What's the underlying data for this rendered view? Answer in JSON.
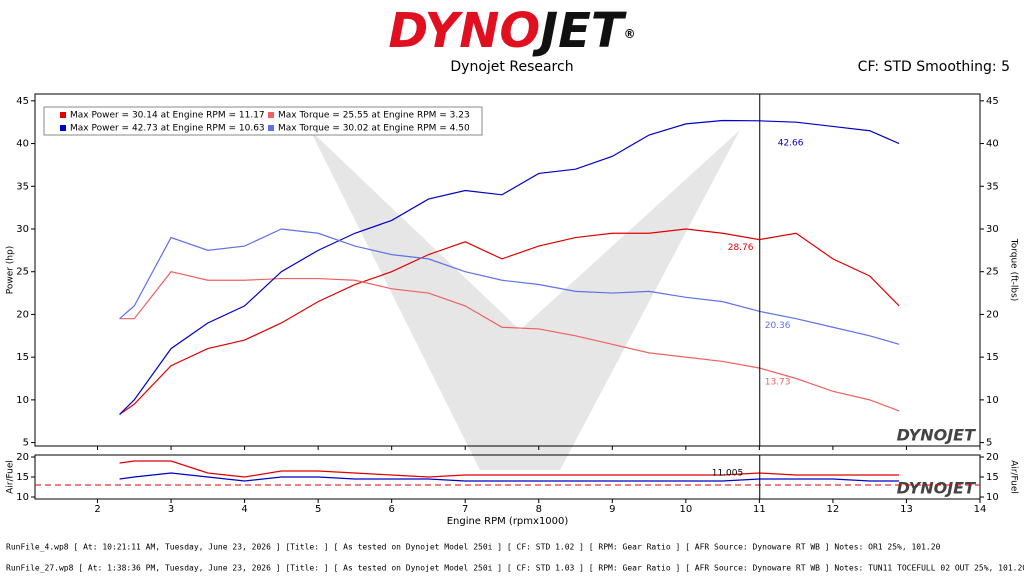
{
  "brand": {
    "left": "DYNO",
    "right": "JET",
    "reg": "®"
  },
  "footer": [
    "RunFile_4.wp8 [ At: 10:21:11 AM, Tuesday, June 23, 2026 ] [Title: ]  [ As tested on Dynojet Model 250i ] [ CF: STD 1.02 ] [ RPM: Gear Ratio ] [ AFR Source: Dynoware RT WB ] Notes: OR1 25%, 101.20",
    "RunFile_27.wp8 [ At: 1:38:36 PM, Tuesday, June 23, 2026 ] [Title: ]  [ As tested on Dynojet Model 250i ] [ CF: STD 1.03 ] [ RPM: Gear Ratio ] [ AFR Source: Dynoware RT WB ] Notes: TUN11 TOCEFULL 02 OUT 25%, 101.20"
  ],
  "chart_data": [
    {
      "type": "line",
      "title": "Dynojet Research",
      "subtitle": "CF: STD Smoothing: 5",
      "ylabel": "Power (hp)",
      "y2label": "Torque (ft-lbs)",
      "watermark": "DYNOJET",
      "x": [
        2.3,
        2.5,
        3,
        3.5,
        4,
        4.5,
        5,
        5.5,
        6,
        6.5,
        7,
        7.5,
        8,
        8.5,
        9,
        9.5,
        10,
        10.5,
        11,
        11.5,
        12,
        12.5,
        12.9
      ],
      "xlim": [
        1.15,
        14
      ],
      "xticks": [
        2,
        3,
        4,
        5,
        6,
        7,
        8,
        9,
        10,
        11,
        12,
        13,
        14
      ],
      "ylim": [
        4.6,
        45.8
      ],
      "yticks": [
        5,
        10,
        15,
        20,
        25,
        30,
        35,
        40,
        45
      ],
      "y2lim": [
        4.6,
        45.8
      ],
      "y2ticks": [
        5,
        10,
        15,
        20,
        25,
        30,
        35,
        40,
        45
      ],
      "grid": false,
      "cursor_x": 11.005,
      "series": [
        {
          "name": "Max Power = 30.14 at Engine RPM = 11.17",
          "color": "#e00000",
          "values": [
            8.3,
            9.5,
            14,
            16,
            17,
            19,
            21.5,
            23.5,
            25,
            27,
            28.5,
            26.5,
            28,
            29,
            29.5,
            29.5,
            30,
            29.5,
            28.76,
            29.5,
            26.5,
            24.5,
            21
          ]
        },
        {
          "name": "Max Torque = 25.55 at Engine RPM = 3.23",
          "color": "#f06060",
          "axis": "y2",
          "values": [
            19.5,
            19.5,
            25,
            24,
            24,
            24.2,
            24.2,
            24,
            23,
            22.5,
            21,
            18.5,
            18.3,
            17.5,
            16.5,
            15.5,
            15,
            14.5,
            13.73,
            12.5,
            11,
            10,
            8.7
          ]
        },
        {
          "name": "Max Power = 42.73 at Engine RPM = 10.63",
          "color": "#0000c8",
          "values": [
            8.3,
            10,
            16,
            19,
            21,
            25,
            27.5,
            29.5,
            31,
            33.5,
            34.5,
            34,
            36.5,
            37,
            38.5,
            41,
            42.3,
            42.7,
            42.66,
            42.5,
            42,
            41.5,
            40
          ]
        },
        {
          "name": "Max Torque = 30.02 at Engine RPM = 4.50",
          "color": "#6070e8",
          "axis": "y2",
          "values": [
            19.5,
            21,
            29,
            27.5,
            28,
            30,
            29.5,
            28,
            27,
            26.5,
            25,
            24,
            23.5,
            22.7,
            22.5,
            22.7,
            22,
            21.5,
            20.36,
            19.5,
            18.5,
            17.5,
            16.5
          ]
        }
      ]
    },
    {
      "type": "line",
      "xlabel": "Engine RPM (rpmx1000)",
      "ylabel": "Air/Fuel",
      "y2label": "Air/Fuel",
      "watermark": "DYNOJET",
      "x": [
        2.3,
        2.5,
        3,
        3.5,
        4,
        4.5,
        5,
        5.5,
        6,
        6.5,
        7,
        7.5,
        8,
        8.5,
        9,
        9.5,
        10,
        10.5,
        11,
        11.5,
        12,
        12.5,
        12.9
      ],
      "xlim": [
        1.15,
        14
      ],
      "xticks": [
        2,
        3,
        4,
        5,
        6,
        7,
        8,
        9,
        10,
        11,
        12,
        13,
        14
      ],
      "ylim": [
        9.5,
        20.5
      ],
      "yticks": [
        10,
        15,
        20
      ],
      "y2lim": [
        9.5,
        20.5
      ],
      "y2ticks": [
        10,
        15,
        20
      ],
      "target": 13,
      "cursor_x": 11.005,
      "series": [
        {
          "color": "#e00000",
          "values": [
            18.5,
            19,
            19,
            16,
            15,
            16.5,
            16.5,
            16,
            15.5,
            15,
            15.5,
            15.5,
            15.5,
            15.5,
            15.5,
            15.5,
            15.5,
            15.5,
            16,
            15.5,
            15.5,
            15.5,
            15.5
          ]
        },
        {
          "color": "#0000c8",
          "values": [
            14.5,
            15,
            16,
            15,
            14,
            15,
            15,
            14.5,
            14.5,
            14.5,
            14,
            14,
            14,
            14,
            14,
            14,
            14,
            14,
            14.5,
            14.5,
            14.5,
            14,
            14
          ]
        }
      ]
    }
  ]
}
